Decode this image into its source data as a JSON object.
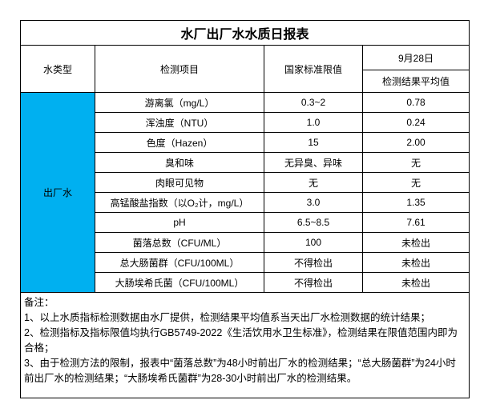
{
  "report": {
    "title": "水厂出厂水水质日报表",
    "columns": {
      "water_type": "水类型",
      "item": "检测项目",
      "standard_limit": "国家标准限值",
      "date": "9月28日",
      "result_avg": "检测结果平均值"
    },
    "water_type_label": "出厂水",
    "rows": [
      {
        "item": "游离氯（mg/L）",
        "limit": "0.3~2",
        "result": "0.78"
      },
      {
        "item": "浑浊度（NTU）",
        "limit": "1.0",
        "result": "0.24"
      },
      {
        "item": "色度（Hazen）",
        "limit": "15",
        "result": "2.00"
      },
      {
        "item": "臭和味",
        "limit": "无异臭、异味",
        "result": "无"
      },
      {
        "item": "肉眼可见物",
        "limit": "无",
        "result": "无"
      },
      {
        "item": "高锰酸盐指数（以O₂计，mg/L）",
        "limit": "3.0",
        "result": "1.35"
      },
      {
        "item": "pH",
        "limit": "6.5~8.5",
        "result": "7.61"
      },
      {
        "item": "菌落总数（CFU/ML）",
        "limit": "100",
        "result": "未检出"
      },
      {
        "item": "总大肠菌群（CFU/100ML）",
        "limit": "不得检出",
        "result": "未检出"
      },
      {
        "item": "大肠埃希氏菌（CFU/100ML）",
        "limit": "不得检出",
        "result": "未检出"
      }
    ],
    "notes": {
      "label": "备注：",
      "items": [
        "1、以上水质指标检测数据由水厂提供，检测结果平均值系当天出厂水检测数据的统计结果；",
        "2、检测指标及指标限值均执行GB5749-2022《生活饮用水卫生标准》，检测结果在限值范围内即为合格；",
        "3、由于检测方法的限制，报表中“菌落总数”为48小时前出厂水的检测结果；“总大肠菌群”为24小时前出厂水的检测结果；“大肠埃希氏菌群”为28-30小时前出厂水的检测结果。"
      ]
    },
    "colors": {
      "water_type_bg": "#00B0F0",
      "border": "#000000"
    }
  }
}
